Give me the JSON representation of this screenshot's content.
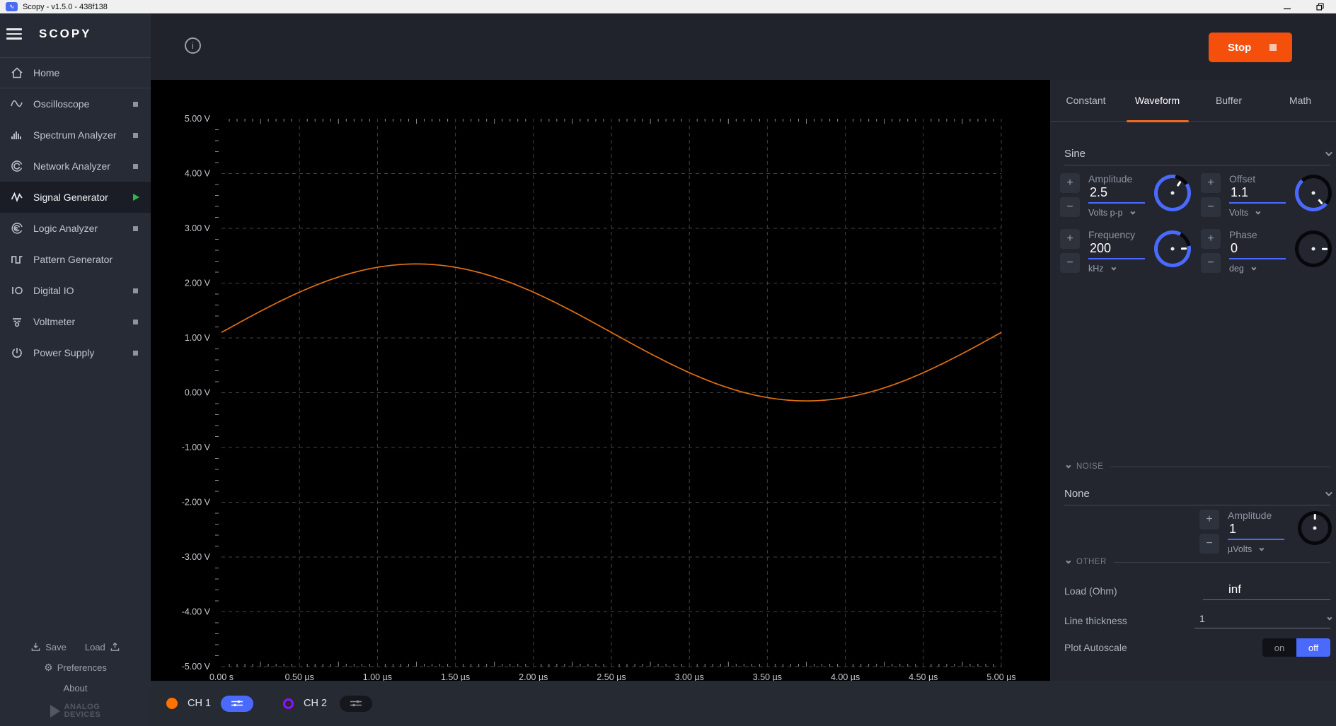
{
  "titlebar": {
    "title": "Scopy - v1.5.0 - 438f138"
  },
  "sidebar": {
    "logo": "SCOPY",
    "items": [
      {
        "label": "Home",
        "state": "none"
      },
      {
        "label": "Oscilloscope",
        "state": "stopped"
      },
      {
        "label": "Spectrum Analyzer",
        "state": "stopped"
      },
      {
        "label": "Network Analyzer",
        "state": "stopped"
      },
      {
        "label": "Signal Generator",
        "state": "running"
      },
      {
        "label": "Logic Analyzer",
        "state": "stopped"
      },
      {
        "label": "Pattern Generator",
        "state": "none"
      },
      {
        "label": "Digital IO",
        "state": "stopped"
      },
      {
        "label": "Voltmeter",
        "state": "stopped"
      },
      {
        "label": "Power Supply",
        "state": "stopped"
      }
    ],
    "footer": {
      "save": "Save",
      "load": "Load",
      "preferences": "Preferences",
      "about": "About",
      "brand_line1": "ANALOG",
      "brand_line2": "DEVICES"
    }
  },
  "header": {
    "stop_label": "Stop"
  },
  "panel": {
    "tabs": [
      {
        "label": "Constant"
      },
      {
        "label": "Waveform"
      },
      {
        "label": "Buffer"
      },
      {
        "label": "Math"
      }
    ],
    "active_tab": "Waveform",
    "waveform_type": "Sine",
    "controls": [
      {
        "label": "Amplitude",
        "value": "2.5",
        "unit": "Volts p-p"
      },
      {
        "label": "Offset",
        "value": "1.1",
        "unit": "Volts"
      },
      {
        "label": "Frequency",
        "value": "200",
        "unit": "kHz"
      },
      {
        "label": "Phase",
        "value": "0",
        "unit": "deg"
      }
    ],
    "noise": {
      "section": "NOISE",
      "type": "None",
      "amp_label": "Amplitude",
      "amp_value": "1",
      "amp_unit": "µVolts"
    },
    "other": {
      "section": "OTHER",
      "load_label": "Load (Ohm)",
      "load_value": "inf",
      "thickness_label": "Line thickness",
      "thickness_value": "1",
      "autoscale_label": "Plot Autoscale",
      "on_label": "on",
      "off_label": "off",
      "autoscale_state": "off"
    },
    "accent_orange": "#f26a1e",
    "accent_blue": "#4a6afe"
  },
  "channels": [
    {
      "label": "CH 1",
      "color": "#ff7200",
      "enabled": true
    },
    {
      "label": "CH 2",
      "color": "#9013fe",
      "enabled": false
    }
  ],
  "icons": {
    "preferences_gear": "⚙",
    "info": "i",
    "stop_square": "square",
    "run_play": "triangle"
  },
  "chart_data": {
    "type": "line",
    "title": "",
    "xlabel": "",
    "ylabel": "",
    "x_ticks": [
      "0.00 s",
      "0.50 µs",
      "1.00 µs",
      "1.50 µs",
      "2.00 µs",
      "2.50 µs",
      "3.00 µs",
      "3.50 µs",
      "4.00 µs",
      "4.50 µs",
      "5.00 µs"
    ],
    "y_ticks": [
      "5.00 V",
      "4.00 V",
      "3.00 V",
      "2.00 V",
      "1.00 V",
      "0.00 V",
      "-1.00 V",
      "-2.00 V",
      "-3.00 V",
      "-4.00 V",
      "-5.00 V"
    ],
    "xlim_us": [
      0,
      5
    ],
    "ylim_v": [
      -5,
      5
    ],
    "grid": true,
    "background": "#000000",
    "grid_color": "#3f4347",
    "tick_color": "#8a8d94",
    "label_color": "#c6c9cf",
    "series": [
      {
        "name": "CH1 sine",
        "color": "#e07010",
        "waveform": "sine",
        "amplitude_vpp": 2.5,
        "offset_v": 1.1,
        "frequency_hz": 200000,
        "phase_deg": 0,
        "period_us": 5,
        "x_us": [
          0,
          0.25,
          0.5,
          0.75,
          1.0,
          1.25,
          1.5,
          1.75,
          2.0,
          2.25,
          2.5,
          2.75,
          3.0,
          3.25,
          3.5,
          3.75,
          4.0,
          4.25,
          4.5,
          4.75,
          5.0
        ],
        "y_v": [
          1.1,
          1.486,
          1.835,
          2.111,
          2.289,
          2.35,
          2.289,
          2.111,
          1.835,
          1.486,
          1.1,
          0.714,
          0.365,
          0.089,
          -0.089,
          -0.15,
          -0.089,
          0.089,
          0.365,
          0.714,
          1.1
        ]
      }
    ]
  }
}
